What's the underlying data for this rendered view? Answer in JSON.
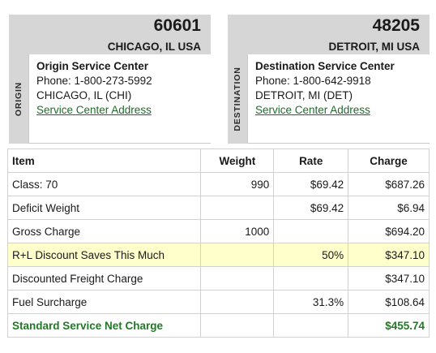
{
  "origin": {
    "zip": "60601",
    "city": "CHICAGO, IL USA",
    "side_label": "ORIGIN",
    "heading": "Origin Service Center",
    "phone": "Phone: 1-800-273-5992",
    "location": "CHICAGO, IL (CHI)",
    "link": "Service Center Address"
  },
  "destination": {
    "zip": "48205",
    "city": "DETROIT, MI USA",
    "side_label": "DESTINATION",
    "heading": "Destination Service Center",
    "phone": "Phone: 1-800-642-9918",
    "location": "DETROIT, MI (DET)",
    "link": "Service Center Address"
  },
  "table": {
    "headers": [
      "Item",
      "Weight",
      "Rate",
      "Charge"
    ],
    "rows": [
      {
        "item": "Class: 70",
        "weight": "990",
        "rate": "$69.42",
        "charge": "$687.26"
      },
      {
        "item": "Deficit Weight",
        "weight": "",
        "rate": "$69.42",
        "charge": "$6.94"
      },
      {
        "item": "Gross Charge",
        "weight": "1000",
        "rate": "",
        "charge": "$694.20"
      },
      {
        "item": "R+L Discount Saves This Much",
        "weight": "",
        "rate": "50%",
        "charge": "$347.10"
      },
      {
        "item": "Discounted Freight Charge",
        "weight": "",
        "rate": "",
        "charge": "$347.10"
      },
      {
        "item": "Fuel Surcharge",
        "weight": "",
        "rate": "31.3%",
        "charge": "$108.64"
      },
      {
        "item": "Standard Service Net Charge",
        "weight": "",
        "rate": "",
        "charge": "$455.74"
      }
    ]
  },
  "colors": {
    "highlight_row": "#ffffcc",
    "net_charge_text": "#1f7a24",
    "link": "#1f6b2a",
    "panel_bg": "#d6d6d6"
  }
}
